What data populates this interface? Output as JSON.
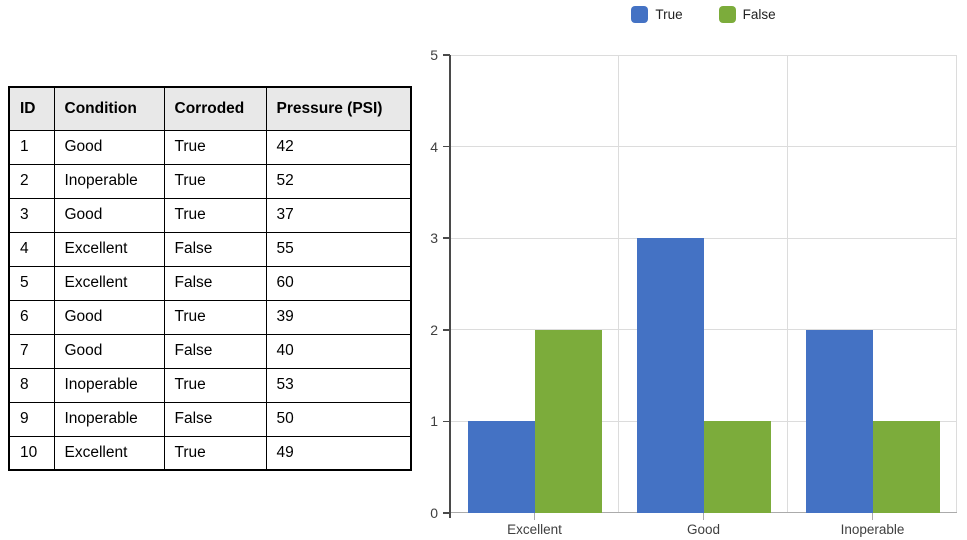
{
  "table": {
    "headers": [
      "ID",
      "Condition",
      "Corroded",
      "Pressure (PSI)"
    ],
    "rows": [
      [
        "1",
        "Good",
        "True",
        "42"
      ],
      [
        "2",
        "Inoperable",
        "True",
        "52"
      ],
      [
        "3",
        "Good",
        "True",
        "37"
      ],
      [
        "4",
        "Excellent",
        "False",
        "55"
      ],
      [
        "5",
        "Excellent",
        "False",
        "60"
      ],
      [
        "6",
        "Good",
        "True",
        "39"
      ],
      [
        "7",
        "Good",
        "False",
        "40"
      ],
      [
        "8",
        "Inoperable",
        "True",
        "53"
      ],
      [
        "9",
        "Inoperable",
        "False",
        "50"
      ],
      [
        "10",
        "Excellent",
        "True",
        "49"
      ]
    ]
  },
  "chart_data": {
    "type": "bar",
    "title": "",
    "categories": [
      "Excellent",
      "Good",
      "Inoperable"
    ],
    "series": [
      {
        "name": "True",
        "color": "#4472C4",
        "values": [
          1,
          3,
          2
        ]
      },
      {
        "name": "False",
        "color": "#7CAC3B",
        "values": [
          2,
          1,
          1
        ]
      }
    ],
    "xlabel": "",
    "ylabel": "",
    "ylim": [
      0,
      5
    ],
    "yticks": [
      0,
      1,
      2,
      3,
      4,
      5
    ],
    "grid": true,
    "legend_position": "top"
  },
  "colors": {
    "grid": "#DCDCDC",
    "y_axis": "#4a4a4a",
    "x_axis": "#ABABAB",
    "table_header_bg": "#E8E8E8",
    "table_border": "#000000"
  }
}
